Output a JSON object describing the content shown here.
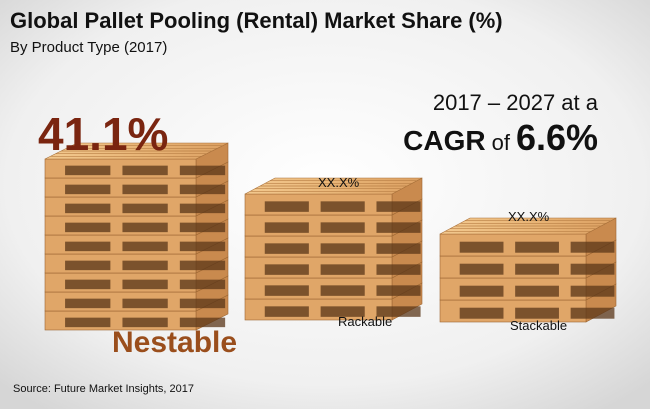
{
  "header": {
    "title": "Global Pallet Pooling (Rental) Market Share (%)",
    "subtitle": "By Product Type (2017)"
  },
  "cagr": {
    "period": "2017 – 2027 at a",
    "label": "CAGR",
    "of": "of",
    "value": "6.6%"
  },
  "items": [
    {
      "share": "41.1%",
      "label": "Nestable"
    },
    {
      "share": "XX.X%",
      "label": "Rackable"
    },
    {
      "share": "XX.X%",
      "label": "Stackable"
    }
  ],
  "source": "Source: Future Market Insights, 2017"
}
